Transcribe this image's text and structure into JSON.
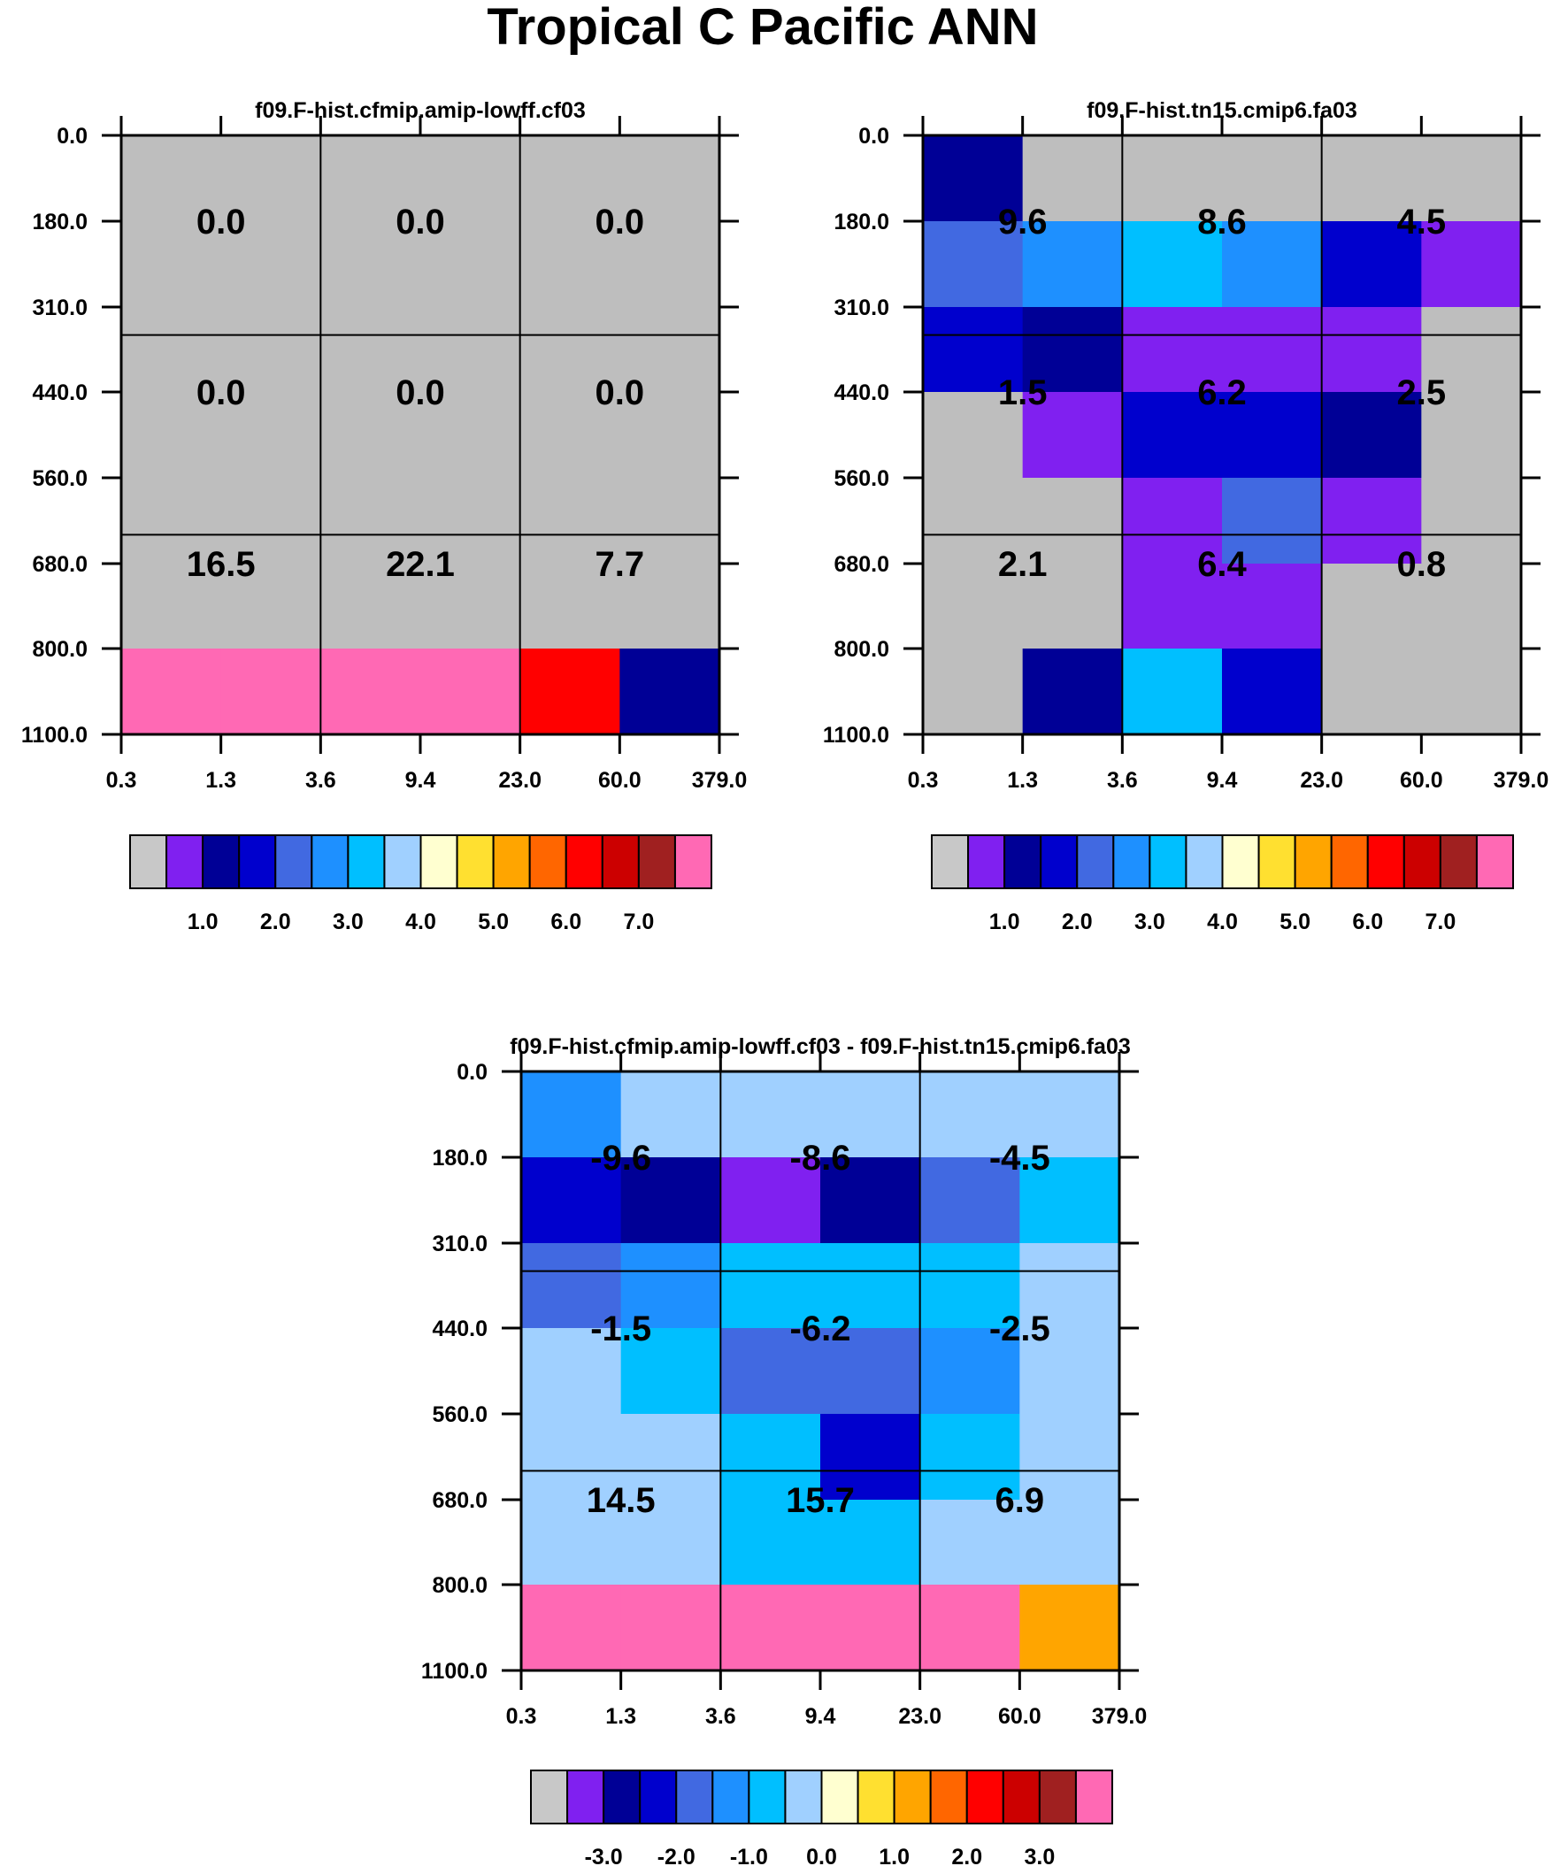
{
  "figure_title": "Tropical C Pacific ANN",
  "colors": {
    "cell_palette": {
      "gray": "#bebebe",
      "purple": "#8020f0",
      "navy": "#000096",
      "blue": "#0000cd",
      "royal": "#4169e1",
      "dodger": "#1e90ff",
      "sky": "#00bfff",
      "light": "#a0d0ff",
      "orange": "#ffa500",
      "red": "#ff0000",
      "pink": "#ff69b4"
    },
    "colorbar": [
      "#c8c8c8",
      "#8020f0",
      "#000096",
      "#0000cd",
      "#4169e1",
      "#1e90ff",
      "#00bfff",
      "#a0d0ff",
      "#ffffd0",
      "#ffe030",
      "#ffa500",
      "#ff6600",
      "#ff0000",
      "#cc0000",
      "#a02020",
      "#ff69b4"
    ]
  },
  "chart_data": [
    {
      "type": "heatmap",
      "title": "f09.F-hist.cfmip.amip-lowff.cf03",
      "x_tick_labels": [
        "0.3",
        "1.3",
        "3.6",
        "9.4",
        "23.0",
        "60.0",
        "379.0"
      ],
      "y_tick_labels": [
        "0.0",
        "180.0",
        "310.0",
        "440.0",
        "560.0",
        "680.0",
        "800.0",
        "1100.0"
      ],
      "cells": [
        [
          "gray",
          "gray",
          "gray",
          "gray",
          "gray",
          "gray"
        ],
        [
          "gray",
          "gray",
          "gray",
          "gray",
          "gray",
          "gray"
        ],
        [
          "gray",
          "gray",
          "gray",
          "gray",
          "gray",
          "gray"
        ],
        [
          "gray",
          "gray",
          "gray",
          "gray",
          "gray",
          "gray"
        ],
        [
          "gray",
          "gray",
          "gray",
          "gray",
          "gray",
          "gray"
        ],
        [
          "gray",
          "gray",
          "gray",
          "gray",
          "gray",
          "gray"
        ],
        [
          "pink",
          "pink",
          "pink",
          "pink",
          "red",
          "navy"
        ]
      ],
      "block_values": [
        [
          "0.0",
          "0.0",
          "0.0"
        ],
        [
          "0.0",
          "0.0",
          "0.0"
        ],
        [
          "16.5",
          "22.1",
          "7.7"
        ]
      ],
      "colorbar_labels": [
        "1.0",
        "2.0",
        "3.0",
        "4.0",
        "5.0",
        "6.0",
        "7.0"
      ]
    },
    {
      "type": "heatmap",
      "title": "f09.F-hist.tn15.cmip6.fa03",
      "x_tick_labels": [
        "0.3",
        "1.3",
        "3.6",
        "9.4",
        "23.0",
        "60.0",
        "379.0"
      ],
      "y_tick_labels": [
        "0.0",
        "180.0",
        "310.0",
        "440.0",
        "560.0",
        "680.0",
        "800.0",
        "1100.0"
      ],
      "cells": [
        [
          "navy",
          "gray",
          "gray",
          "gray",
          "gray",
          "gray"
        ],
        [
          "royal",
          "dodger",
          "sky",
          "dodger",
          "blue",
          "purple"
        ],
        [
          "blue",
          "navy",
          "purple",
          "purple",
          "purple",
          "gray"
        ],
        [
          "gray",
          "purple",
          "blue",
          "blue",
          "navy",
          "gray"
        ],
        [
          "gray",
          "gray",
          "purple",
          "royal",
          "purple",
          "gray"
        ],
        [
          "gray",
          "gray",
          "purple",
          "purple",
          "gray",
          "gray"
        ],
        [
          "gray",
          "navy",
          "sky",
          "blue",
          "gray",
          "gray"
        ]
      ],
      "block_values": [
        [
          "9.6",
          "8.6",
          "4.5"
        ],
        [
          "1.5",
          "6.2",
          "2.5"
        ],
        [
          "2.1",
          "6.4",
          "0.8"
        ]
      ],
      "colorbar_labels": [
        "1.0",
        "2.0",
        "3.0",
        "4.0",
        "5.0",
        "6.0",
        "7.0"
      ]
    },
    {
      "type": "heatmap",
      "title": "f09.F-hist.cfmip.amip-lowff.cf03 - f09.F-hist.tn15.cmip6.fa03",
      "x_tick_labels": [
        "0.3",
        "1.3",
        "3.6",
        "9.4",
        "23.0",
        "60.0",
        "379.0"
      ],
      "y_tick_labels": [
        "0.0",
        "180.0",
        "310.0",
        "440.0",
        "560.0",
        "680.0",
        "800.0",
        "1100.0"
      ],
      "cells": [
        [
          "dodger",
          "light",
          "light",
          "light",
          "light",
          "light"
        ],
        [
          "blue",
          "navy",
          "purple",
          "navy",
          "royal",
          "sky"
        ],
        [
          "royal",
          "dodger",
          "sky",
          "sky",
          "sky",
          "light"
        ],
        [
          "light",
          "sky",
          "royal",
          "royal",
          "dodger",
          "light"
        ],
        [
          "light",
          "light",
          "sky",
          "blue",
          "sky",
          "light"
        ],
        [
          "light",
          "light",
          "sky",
          "sky",
          "light",
          "light"
        ],
        [
          "pink",
          "pink",
          "pink",
          "pink",
          "pink",
          "orange"
        ]
      ],
      "block_values": [
        [
          "-9.6",
          "-8.6",
          "-4.5"
        ],
        [
          "-1.5",
          "-6.2",
          "-2.5"
        ],
        [
          "14.5",
          "15.7",
          "6.9"
        ]
      ],
      "colorbar_labels": [
        "-3.0",
        "-2.0",
        "-1.0",
        "0.0",
        "1.0",
        "2.0",
        "3.0"
      ]
    }
  ]
}
